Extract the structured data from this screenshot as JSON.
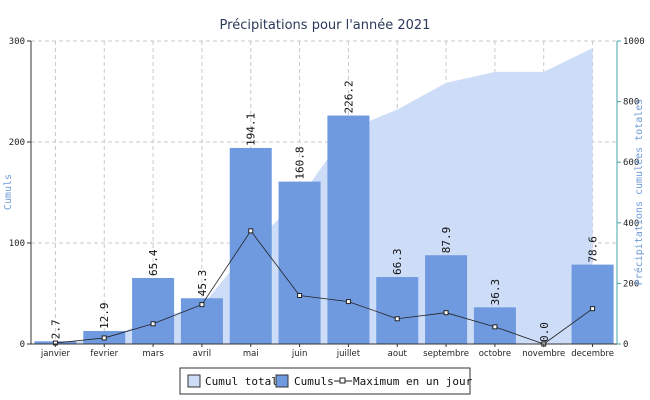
{
  "chart_data": {
    "type": "bar",
    "title": "Précipitations pour l'année 2021",
    "ylabel": "Cumuls",
    "y2label": "Précipitations cumulées totales",
    "ylim": [
      0,
      300
    ],
    "y2lim": [
      0,
      1000
    ],
    "yticks": [
      "0",
      "100",
      "200",
      "300"
    ],
    "y2ticks": [
      "0",
      "200",
      "400",
      "600",
      "800",
      "1000"
    ],
    "grid": true,
    "legend_position": "bottom",
    "categories": [
      "janvier",
      "fevrier",
      "mars",
      "avril",
      "mai",
      "juin",
      "juillet",
      "aout",
      "septembre",
      "octobre",
      "novembre",
      "decembre"
    ],
    "series": [
      {
        "name": "Cumul total",
        "type": "area",
        "axis": "right",
        "values": [
          2.7,
          15.6,
          81.0,
          126.3,
          320.4,
          481.2,
          707.4,
          773.7,
          861.6,
          897.9,
          897.9,
          976.5
        ]
      },
      {
        "name": "Cumuls",
        "type": "bar",
        "axis": "left",
        "values": [
          2.7,
          12.9,
          65.4,
          45.3,
          194.1,
          160.8,
          226.2,
          66.3,
          87.9,
          36.3,
          0.0,
          78.6
        ],
        "labels": [
          "2.7",
          "12.9",
          "65.4",
          "45.3",
          "194.1",
          "160.8",
          "226.2",
          "66.3",
          "87.9",
          "36.3",
          "0.0",
          "78.6"
        ]
      },
      {
        "name": "Maximum en un jour",
        "type": "line",
        "axis": "left",
        "values": [
          1,
          6,
          20,
          39,
          112,
          48,
          42,
          25,
          31,
          17,
          0,
          35
        ]
      }
    ],
    "colors": {
      "area": "#cddcf7",
      "bar": "#6f9ae0",
      "line": "#222222",
      "right_axis": "#4aa3a3"
    }
  }
}
